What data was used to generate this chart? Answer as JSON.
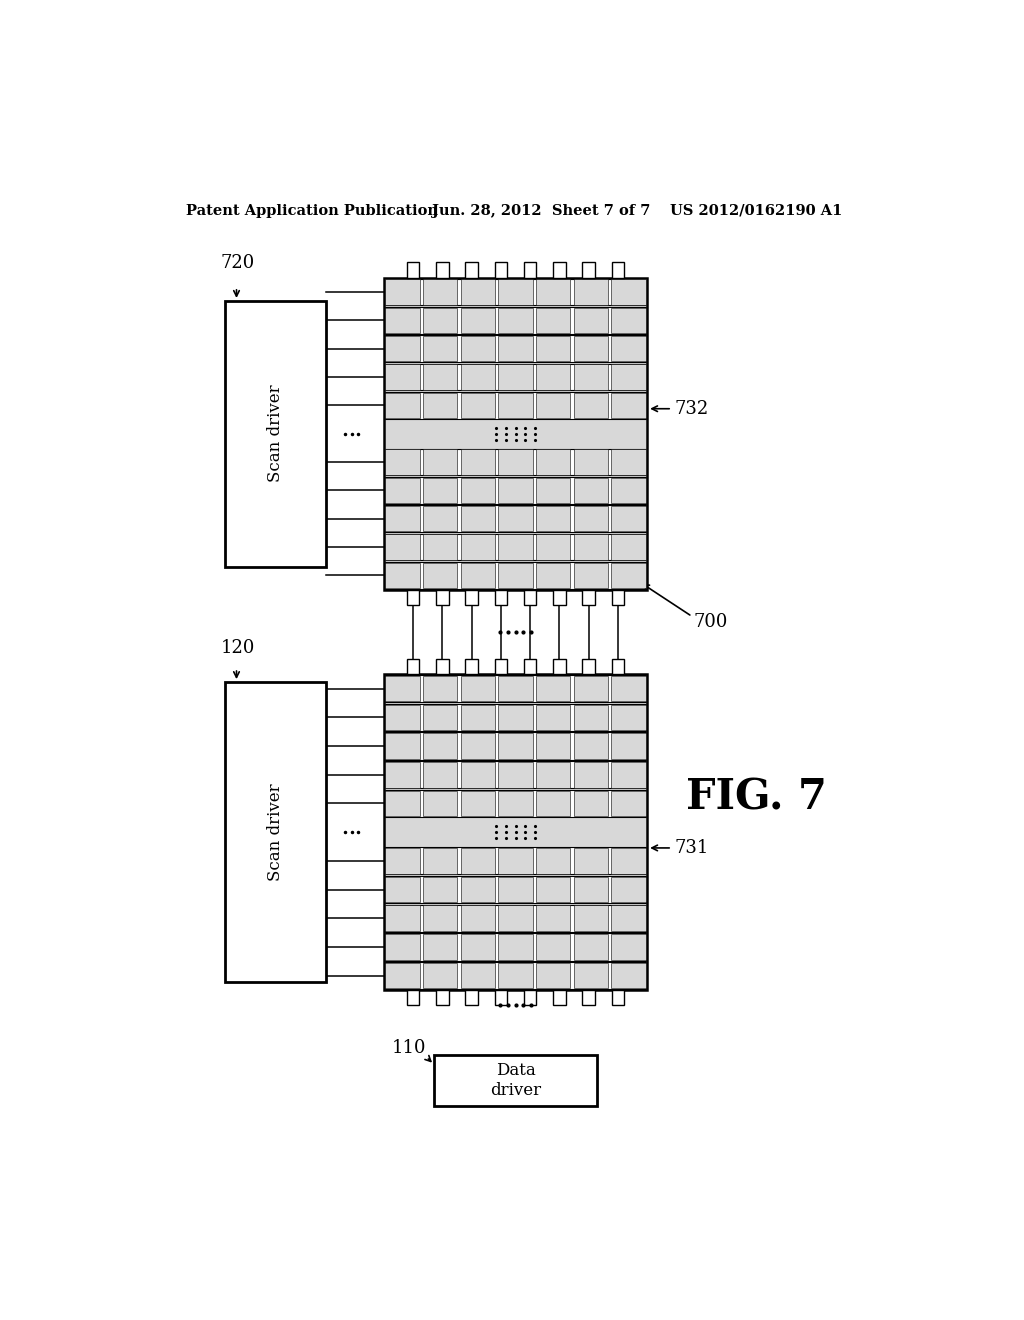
{
  "bg_color": "#ffffff",
  "header_left": "Patent Application Publication",
  "header_mid": "Jun. 28, 2012  Sheet 7 of 7",
  "header_right": "US 2012/0162190 A1",
  "fig_label": "FIG. 7",
  "panel_top_label": "732",
  "panel_top_scan_label": "720",
  "panel_bot_label": "731",
  "panel_bot_scan_label": "120",
  "system_label": "700",
  "data_driver_label": "110",
  "scan_driver_text": "Scan driver",
  "data_driver_text": "Data\ndriver",
  "stipple_color": "#d8d8d8",
  "cell_color": "#e8e8e8",
  "panel_bg": "#d0d0d0"
}
